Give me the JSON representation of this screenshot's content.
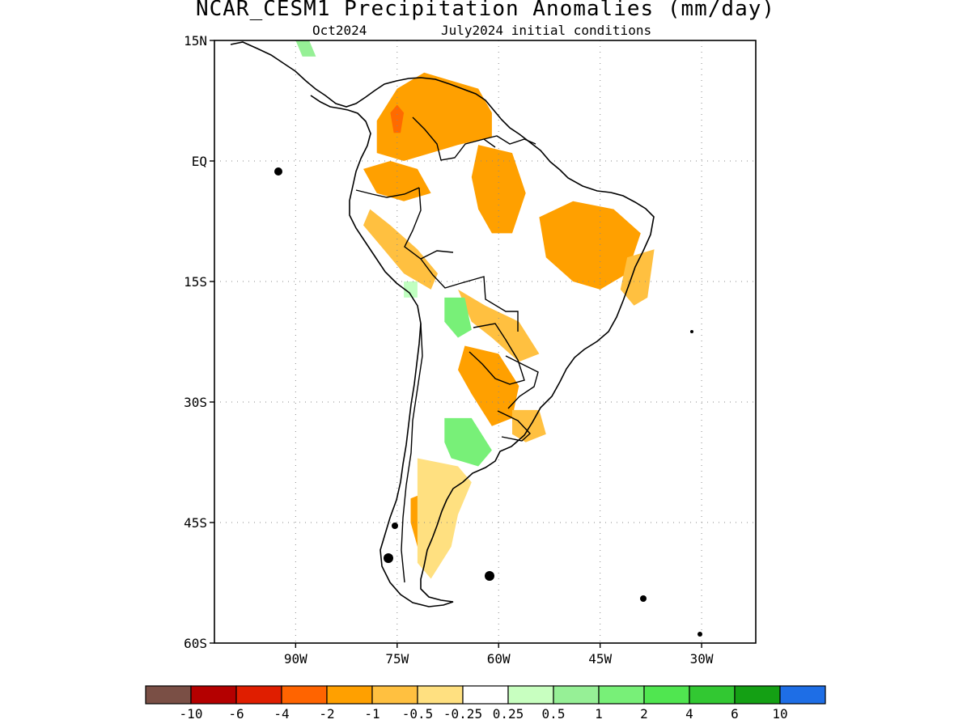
{
  "header": {
    "title": "NCAR_CESM1 Precipitation Anomalies (mm/day)",
    "valid_month": "Oct2024",
    "initial_conditions": "July2024 initial conditions"
  },
  "map": {
    "lon_range": [
      -102,
      -22
    ],
    "lat_range": [
      -60,
      15
    ],
    "lat_ticks": [
      {
        "value": 15,
        "label": "15N"
      },
      {
        "value": 0,
        "label": "EQ"
      },
      {
        "value": -15,
        "label": "15S"
      },
      {
        "value": -30,
        "label": "30S"
      },
      {
        "value": -45,
        "label": "45S"
      },
      {
        "value": -60,
        "label": "60S"
      }
    ],
    "lon_ticks": [
      {
        "value": -90,
        "label": "90W"
      },
      {
        "value": -75,
        "label": "75W"
      },
      {
        "value": -60,
        "label": "60W"
      },
      {
        "value": -45,
        "label": "45W"
      },
      {
        "value": -30,
        "label": "30W"
      }
    ],
    "grid": "dotted",
    "anomaly_regions": [
      {
        "name": "northern-andes-colombia",
        "color": "#ffa000",
        "points": [
          [
            -78,
            5
          ],
          [
            -75,
            9
          ],
          [
            -71,
            11
          ],
          [
            -67,
            10
          ],
          [
            -63,
            9
          ],
          [
            -61,
            6
          ],
          [
            -61,
            3
          ],
          [
            -66,
            2
          ],
          [
            -70,
            1
          ],
          [
            -74,
            0
          ],
          [
            -78,
            1
          ]
        ]
      },
      {
        "name": "colombia-core",
        "color": "#ff6a00",
        "points": [
          [
            -75,
            7
          ],
          [
            -74,
            6
          ],
          [
            -74.5,
            3.5
          ],
          [
            -75.5,
            3.5
          ],
          [
            -76,
            6
          ]
        ]
      },
      {
        "name": "western-amazon",
        "color": "#ffa000",
        "points": [
          [
            -80,
            -1
          ],
          [
            -76,
            0
          ],
          [
            -72,
            -1
          ],
          [
            -70,
            -4
          ],
          [
            -74,
            -5
          ],
          [
            -78,
            -4
          ]
        ]
      },
      {
        "name": "peru-andes",
        "color": "#ffc040",
        "points": [
          [
            -79,
            -6
          ],
          [
            -76,
            -8
          ],
          [
            -72,
            -11
          ],
          [
            -69,
            -14
          ],
          [
            -70,
            -16
          ],
          [
            -74,
            -14
          ],
          [
            -77,
            -11
          ],
          [
            -80,
            -8
          ]
        ]
      },
      {
        "name": "central-amazon",
        "color": "#ffa000",
        "points": [
          [
            -63,
            2
          ],
          [
            -58,
            1
          ],
          [
            -56,
            -4
          ],
          [
            -58,
            -9
          ],
          [
            -61,
            -9
          ],
          [
            -63,
            -6
          ],
          [
            -64,
            -2
          ]
        ]
      },
      {
        "name": "eastern-brazil",
        "color": "#ffa000",
        "points": [
          [
            -54,
            -7
          ],
          [
            -49,
            -5
          ],
          [
            -43,
            -6
          ],
          [
            -39,
            -9
          ],
          [
            -41,
            -14
          ],
          [
            -45,
            -16
          ],
          [
            -49,
            -15
          ],
          [
            -53,
            -12
          ]
        ]
      },
      {
        "name": "northeast-coast",
        "color": "#ffc040",
        "points": [
          [
            -41,
            -12
          ],
          [
            -37,
            -11
          ],
          [
            -38,
            -17
          ],
          [
            -40,
            -18
          ],
          [
            -42,
            -16
          ]
        ]
      },
      {
        "name": "pantanal-band",
        "color": "#ffc040",
        "points": [
          [
            -66,
            -16
          ],
          [
            -62,
            -18
          ],
          [
            -57,
            -20
          ],
          [
            -54,
            -24
          ],
          [
            -57,
            -25
          ],
          [
            -61,
            -22
          ],
          [
            -64,
            -20
          ]
        ]
      },
      {
        "name": "chaco-pampas",
        "color": "#ffa000",
        "points": [
          [
            -65,
            -23
          ],
          [
            -60,
            -24
          ],
          [
            -57,
            -28
          ],
          [
            -58,
            -32
          ],
          [
            -61,
            -33
          ],
          [
            -64,
            -29
          ],
          [
            -66,
            -26
          ]
        ]
      },
      {
        "name": "uruguay",
        "color": "#ffc040",
        "points": [
          [
            -58,
            -31
          ],
          [
            -54,
            -31
          ],
          [
            -53,
            -34
          ],
          [
            -56,
            -35
          ],
          [
            -58,
            -34
          ]
        ]
      },
      {
        "name": "patagonia",
        "color": "#ffa000",
        "points": [
          [
            -73,
            -42
          ],
          [
            -70,
            -41
          ],
          [
            -68,
            -43
          ],
          [
            -68,
            -46
          ],
          [
            -70,
            -49
          ],
          [
            -72,
            -48
          ],
          [
            -73,
            -45
          ]
        ]
      },
      {
        "name": "southern-argentina",
        "color": "#ffe080",
        "points": [
          [
            -72,
            -37
          ],
          [
            -66,
            -38
          ],
          [
            -64,
            -40
          ],
          [
            -66,
            -44
          ],
          [
            -67,
            -48
          ],
          [
            -70,
            -52
          ],
          [
            -72,
            -50
          ]
        ]
      },
      {
        "name": "bolivia-altiplano",
        "color": "#78f078",
        "points": [
          [
            -68,
            -17
          ],
          [
            -65,
            -17
          ],
          [
            -64,
            -21
          ],
          [
            -66,
            -22
          ],
          [
            -68,
            -20
          ]
        ]
      },
      {
        "name": "central-argentina",
        "color": "#78f078",
        "points": [
          [
            -68,
            -32
          ],
          [
            -64,
            -32
          ],
          [
            -61,
            -36
          ],
          [
            -63,
            -38
          ],
          [
            -67,
            -37
          ],
          [
            -68,
            -35
          ]
        ]
      },
      {
        "name": "peru-coast-green",
        "color": "#c0ffc0",
        "points": [
          [
            -74,
            -15
          ],
          [
            -72,
            -15
          ],
          [
            -72,
            -17
          ],
          [
            -74,
            -17
          ]
        ]
      },
      {
        "name": "central-america-green",
        "color": "#96f096",
        "points": [
          [
            -90,
            15
          ],
          [
            -88,
            15
          ],
          [
            -87,
            13
          ],
          [
            -89,
            13
          ]
        ]
      }
    ]
  },
  "legend": {
    "colors": [
      "#7a4f45",
      "#b40000",
      "#e01e00",
      "#ff6400",
      "#ffa000",
      "#ffc040",
      "#ffe080",
      "#ffffff",
      "#c8ffc0",
      "#96f096",
      "#78f078",
      "#50e650",
      "#32c832",
      "#14a014",
      "#1e6ee6"
    ],
    "labels": [
      "-10",
      "-6",
      "-4",
      "-2",
      "-1",
      "-0.5",
      "-0.25",
      "0.25",
      "0.5",
      "1",
      "2",
      "4",
      "6",
      "10"
    ]
  }
}
